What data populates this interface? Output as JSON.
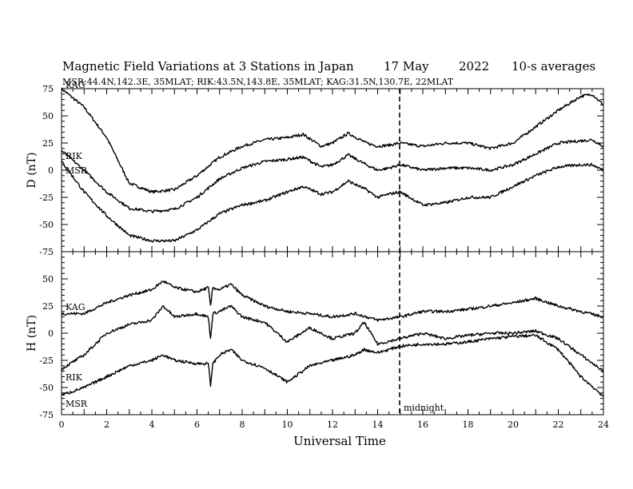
{
  "title_parts": {
    "title": "Magnetic Field Variations at 3 Stations in Japan",
    "date": "17 May",
    "year": "2022",
    "averaging": "10-s averages"
  },
  "subtitle": "MSR:44.4N,142.3E, 35MLAT;  RIK:43.5N,143.8E, 35MLAT;  KAG:31.5N,130.7E, 22MLAT",
  "chart_data": [
    {
      "type": "line",
      "panel": "D",
      "ylabel": "D (nT)",
      "xlim": [
        0,
        24
      ],
      "ylim": [
        -75,
        75
      ],
      "yticks": [
        75,
        50,
        25,
        0,
        -25,
        -50,
        -75
      ],
      "xticks": [
        0,
        2,
        4,
        6,
        8,
        10,
        12,
        14,
        16,
        18,
        20,
        22,
        24
      ],
      "markers": [
        {
          "x": 15,
          "label": "midnight",
          "style": "dashed"
        }
      ],
      "series": [
        {
          "name": "KAG",
          "x": [
            0,
            1,
            2,
            3,
            4,
            5,
            6,
            7,
            8,
            9,
            10,
            10.7,
            11.5,
            12,
            12.7,
            13.5,
            14,
            14.5,
            15,
            16,
            17,
            18,
            19,
            20,
            21,
            22,
            23,
            23.5,
            24
          ],
          "values": [
            75,
            58,
            30,
            -12,
            -20,
            -18,
            -5,
            12,
            22,
            28,
            30,
            33,
            22,
            25,
            34,
            25,
            22,
            23,
            25,
            22,
            25,
            25,
            20,
            25,
            40,
            55,
            68,
            70,
            60
          ]
        },
        {
          "name": "RIK",
          "x": [
            0,
            1,
            2,
            3,
            4,
            5,
            6,
            7,
            8,
            9,
            10,
            10.7,
            11.5,
            12,
            12.7,
            13.5,
            14,
            14.5,
            15,
            16,
            17,
            18,
            19,
            20,
            21,
            22,
            23,
            23.5,
            24
          ],
          "values": [
            18,
            0,
            -20,
            -35,
            -38,
            -36,
            -25,
            -8,
            2,
            8,
            10,
            12,
            3,
            5,
            14,
            5,
            0,
            2,
            5,
            0,
            2,
            2,
            0,
            5,
            15,
            25,
            27,
            28,
            22
          ]
        },
        {
          "name": "MSR",
          "x": [
            0,
            1,
            2,
            3,
            4,
            5,
            6,
            7,
            8,
            9,
            10,
            10.7,
            11.5,
            12,
            12.7,
            13.5,
            14,
            14.5,
            15,
            16,
            17,
            18,
            19,
            20,
            21,
            22,
            23,
            23.5,
            24
          ],
          "values": [
            8,
            -20,
            -42,
            -60,
            -65,
            -65,
            -55,
            -40,
            -32,
            -28,
            -20,
            -15,
            -22,
            -20,
            -10,
            -18,
            -25,
            -22,
            -20,
            -32,
            -30,
            -25,
            -25,
            -15,
            -5,
            3,
            5,
            5,
            0
          ]
        }
      ]
    },
    {
      "type": "line",
      "panel": "H",
      "ylabel": "H (nT)",
      "xlabel": "Universal Time",
      "xlim": [
        0,
        24
      ],
      "ylim": [
        -75,
        75
      ],
      "yticks": [
        50,
        25,
        0,
        -25,
        -50,
        -75
      ],
      "xticks": [
        0,
        2,
        4,
        6,
        8,
        10,
        12,
        14,
        16,
        18,
        20,
        22,
        24
      ],
      "markers": [
        {
          "x": 15,
          "label": "midnight",
          "style": "dashed"
        }
      ],
      "series": [
        {
          "name": "KAG",
          "x": [
            0,
            1,
            2,
            3,
            4,
            4.5,
            5,
            6,
            6.5,
            6.6,
            6.7,
            7,
            7.5,
            8,
            9,
            10,
            11,
            12,
            13,
            14,
            15,
            16,
            17,
            18,
            19,
            20,
            21,
            22,
            23,
            24
          ],
          "values": [
            18,
            18,
            28,
            35,
            40,
            48,
            42,
            38,
            42,
            25,
            42,
            40,
            45,
            35,
            25,
            20,
            18,
            15,
            18,
            12,
            15,
            20,
            20,
            22,
            25,
            28,
            32,
            25,
            20,
            15
          ]
        },
        {
          "name": "RIK",
          "x": [
            0,
            1,
            2,
            3,
            4,
            4.5,
            5,
            6,
            6.5,
            6.6,
            6.7,
            7,
            7.5,
            8,
            9,
            10,
            11,
            12,
            13,
            13.4,
            14,
            15,
            16,
            17,
            18,
            19,
            20,
            21,
            22,
            23,
            24
          ],
          "values": [
            -33,
            -20,
            0,
            8,
            12,
            25,
            15,
            18,
            15,
            -5,
            18,
            20,
            25,
            15,
            10,
            -8,
            5,
            -5,
            0,
            10,
            -10,
            -5,
            0,
            -5,
            -2,
            0,
            0,
            2,
            -5,
            -20,
            -35
          ]
        },
        {
          "name": "MSR",
          "x": [
            0,
            1,
            2,
            3,
            4,
            4.5,
            5,
            6,
            6.5,
            6.6,
            6.7,
            7,
            7.5,
            8,
            9,
            10,
            11,
            12,
            13,
            13.4,
            14,
            15,
            16,
            17,
            18,
            19,
            20,
            21,
            22,
            23,
            24
          ],
          "values": [
            -57,
            -50,
            -40,
            -30,
            -25,
            -20,
            -25,
            -28,
            -28,
            -48,
            -28,
            -20,
            -15,
            -25,
            -32,
            -45,
            -30,
            -25,
            -20,
            -15,
            -18,
            -12,
            -10,
            -10,
            -8,
            -5,
            -3,
            -2,
            -15,
            -40,
            -58
          ]
        }
      ]
    }
  ],
  "labels": {
    "d_kag": "KAG",
    "d_rik": "RIK",
    "d_msr": "MSR",
    "h_kag": "KAG",
    "h_rik": "RIK",
    "h_msr": "MSR",
    "midnight": "midnight"
  }
}
